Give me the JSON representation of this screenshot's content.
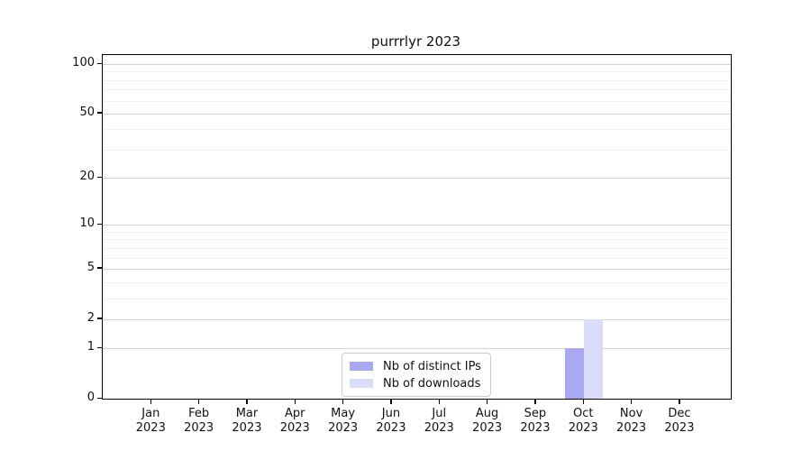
{
  "title": "purrrlyr 2023",
  "chart_data": {
    "type": "bar",
    "title": "purrrlyr 2023",
    "xlabel": "",
    "ylabel": "",
    "categories": [
      "Jan 2023",
      "Feb 2023",
      "Mar 2023",
      "Apr 2023",
      "May 2023",
      "Jun 2023",
      "Jul 2023",
      "Aug 2023",
      "Sep 2023",
      "Oct 2023",
      "Nov 2023",
      "Dec 2023"
    ],
    "series": [
      {
        "name": "Nb of distinct IPs",
        "color": "#a8a8f3",
        "values": [
          0,
          0,
          0,
          0,
          0,
          0,
          0,
          0,
          0,
          1,
          0,
          0
        ]
      },
      {
        "name": "Nb of downloads",
        "color": "#dbdcfa",
        "values": [
          0,
          0,
          0,
          0,
          0,
          0,
          0,
          0,
          0,
          2,
          0,
          0
        ]
      }
    ],
    "y_scale": "log1p",
    "y_ticks": [
      0,
      1,
      2,
      5,
      10,
      20,
      50,
      100
    ],
    "y_minor_gridlines": [
      3,
      4,
      6,
      7,
      8,
      9,
      30,
      40,
      60,
      70,
      80,
      90
    ],
    "ylim": [
      0,
      113
    ],
    "grid": "horizontal",
    "legend_position": "lower center inside"
  }
}
